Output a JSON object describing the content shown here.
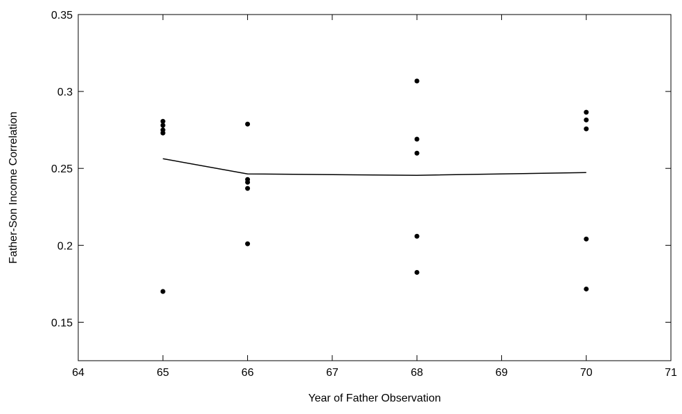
{
  "chart_data": {
    "type": "scatter",
    "x_label": "Year of Father Observation",
    "y_label": "Father-Son Income Correlation",
    "xlim": [
      64,
      71
    ],
    "xticks": [
      64,
      65,
      66,
      67,
      68,
      69,
      70,
      71
    ],
    "ylim": [
      0.125,
      0.35
    ],
    "yticks": [
      0.15,
      0.2,
      0.25,
      0.3,
      0.35
    ],
    "series": [
      {
        "mode": "markers",
        "color": "#000000",
        "x": [
          65,
          65,
          65,
          65,
          65,
          66,
          66,
          66,
          66,
          66,
          68,
          68,
          68,
          68,
          68,
          70,
          70,
          70,
          70,
          70
        ],
        "values": [
          0.2806,
          0.278,
          0.275,
          0.273,
          0.17,
          0.2788,
          0.2428,
          0.241,
          0.237,
          0.201,
          0.3068,
          0.269,
          0.2599,
          0.2059,
          0.1824,
          0.2865,
          0.2815,
          0.2757,
          0.2041,
          0.1716
        ]
      },
      {
        "mode": "lines",
        "color": "#000000",
        "x": [
          65,
          66,
          68,
          70
        ],
        "values": [
          0.2563,
          0.2464,
          0.2455,
          0.2473
        ]
      }
    ]
  }
}
